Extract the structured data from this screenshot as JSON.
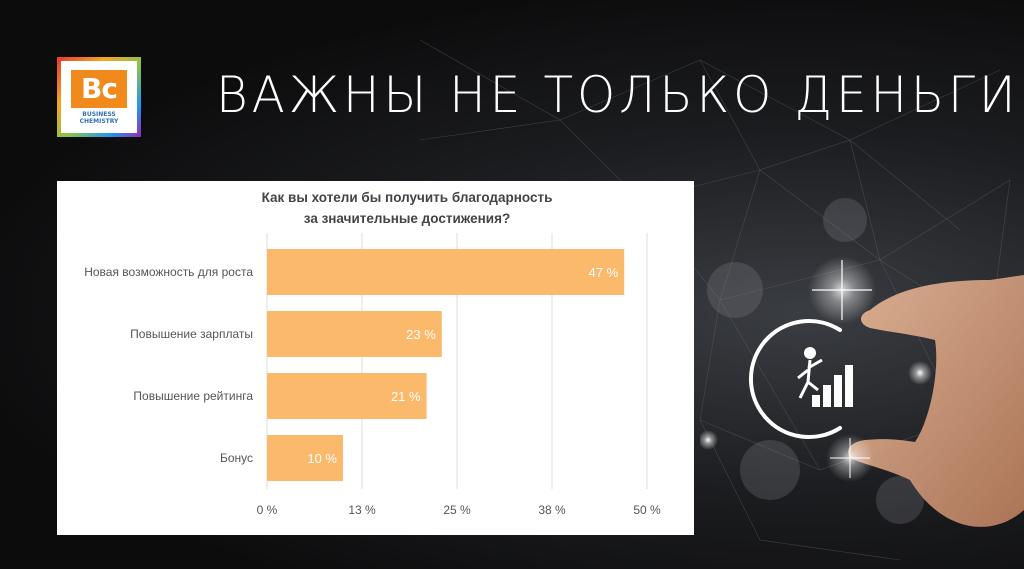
{
  "slide": {
    "title": "ВАЖНЫ НЕ ТОЛЬКО ДЕНЬГИ",
    "logo": {
      "mark": "Bc",
      "line1": "BUSINESS",
      "line2": "CHEMISTRY"
    }
  },
  "colors": {
    "bar": "#fbb96b",
    "grid": "#dddddd",
    "background": "#141517"
  },
  "icons": [
    "growth-person-stairs-icon",
    "hand-icon",
    "sparkle-icon"
  ],
  "chart_data": {
    "type": "bar",
    "orientation": "horizontal",
    "title": "Как вы хотели бы получить благодарность за значительные достижения?",
    "categories": [
      "Новая возможность для роста",
      "Повышение зарплаты",
      "Повышение рейтинга",
      "Бонус"
    ],
    "values": [
      47,
      23,
      21,
      10
    ],
    "value_labels": [
      "47 %",
      "23 %",
      "21 %",
      "10 %"
    ],
    "xticks": [
      0,
      12.5,
      25,
      37.5,
      50
    ],
    "xtick_labels": [
      "0 %",
      "13 %",
      "25 %",
      "38 %",
      "50 %"
    ],
    "xlim": [
      0,
      50
    ],
    "grid": true
  }
}
